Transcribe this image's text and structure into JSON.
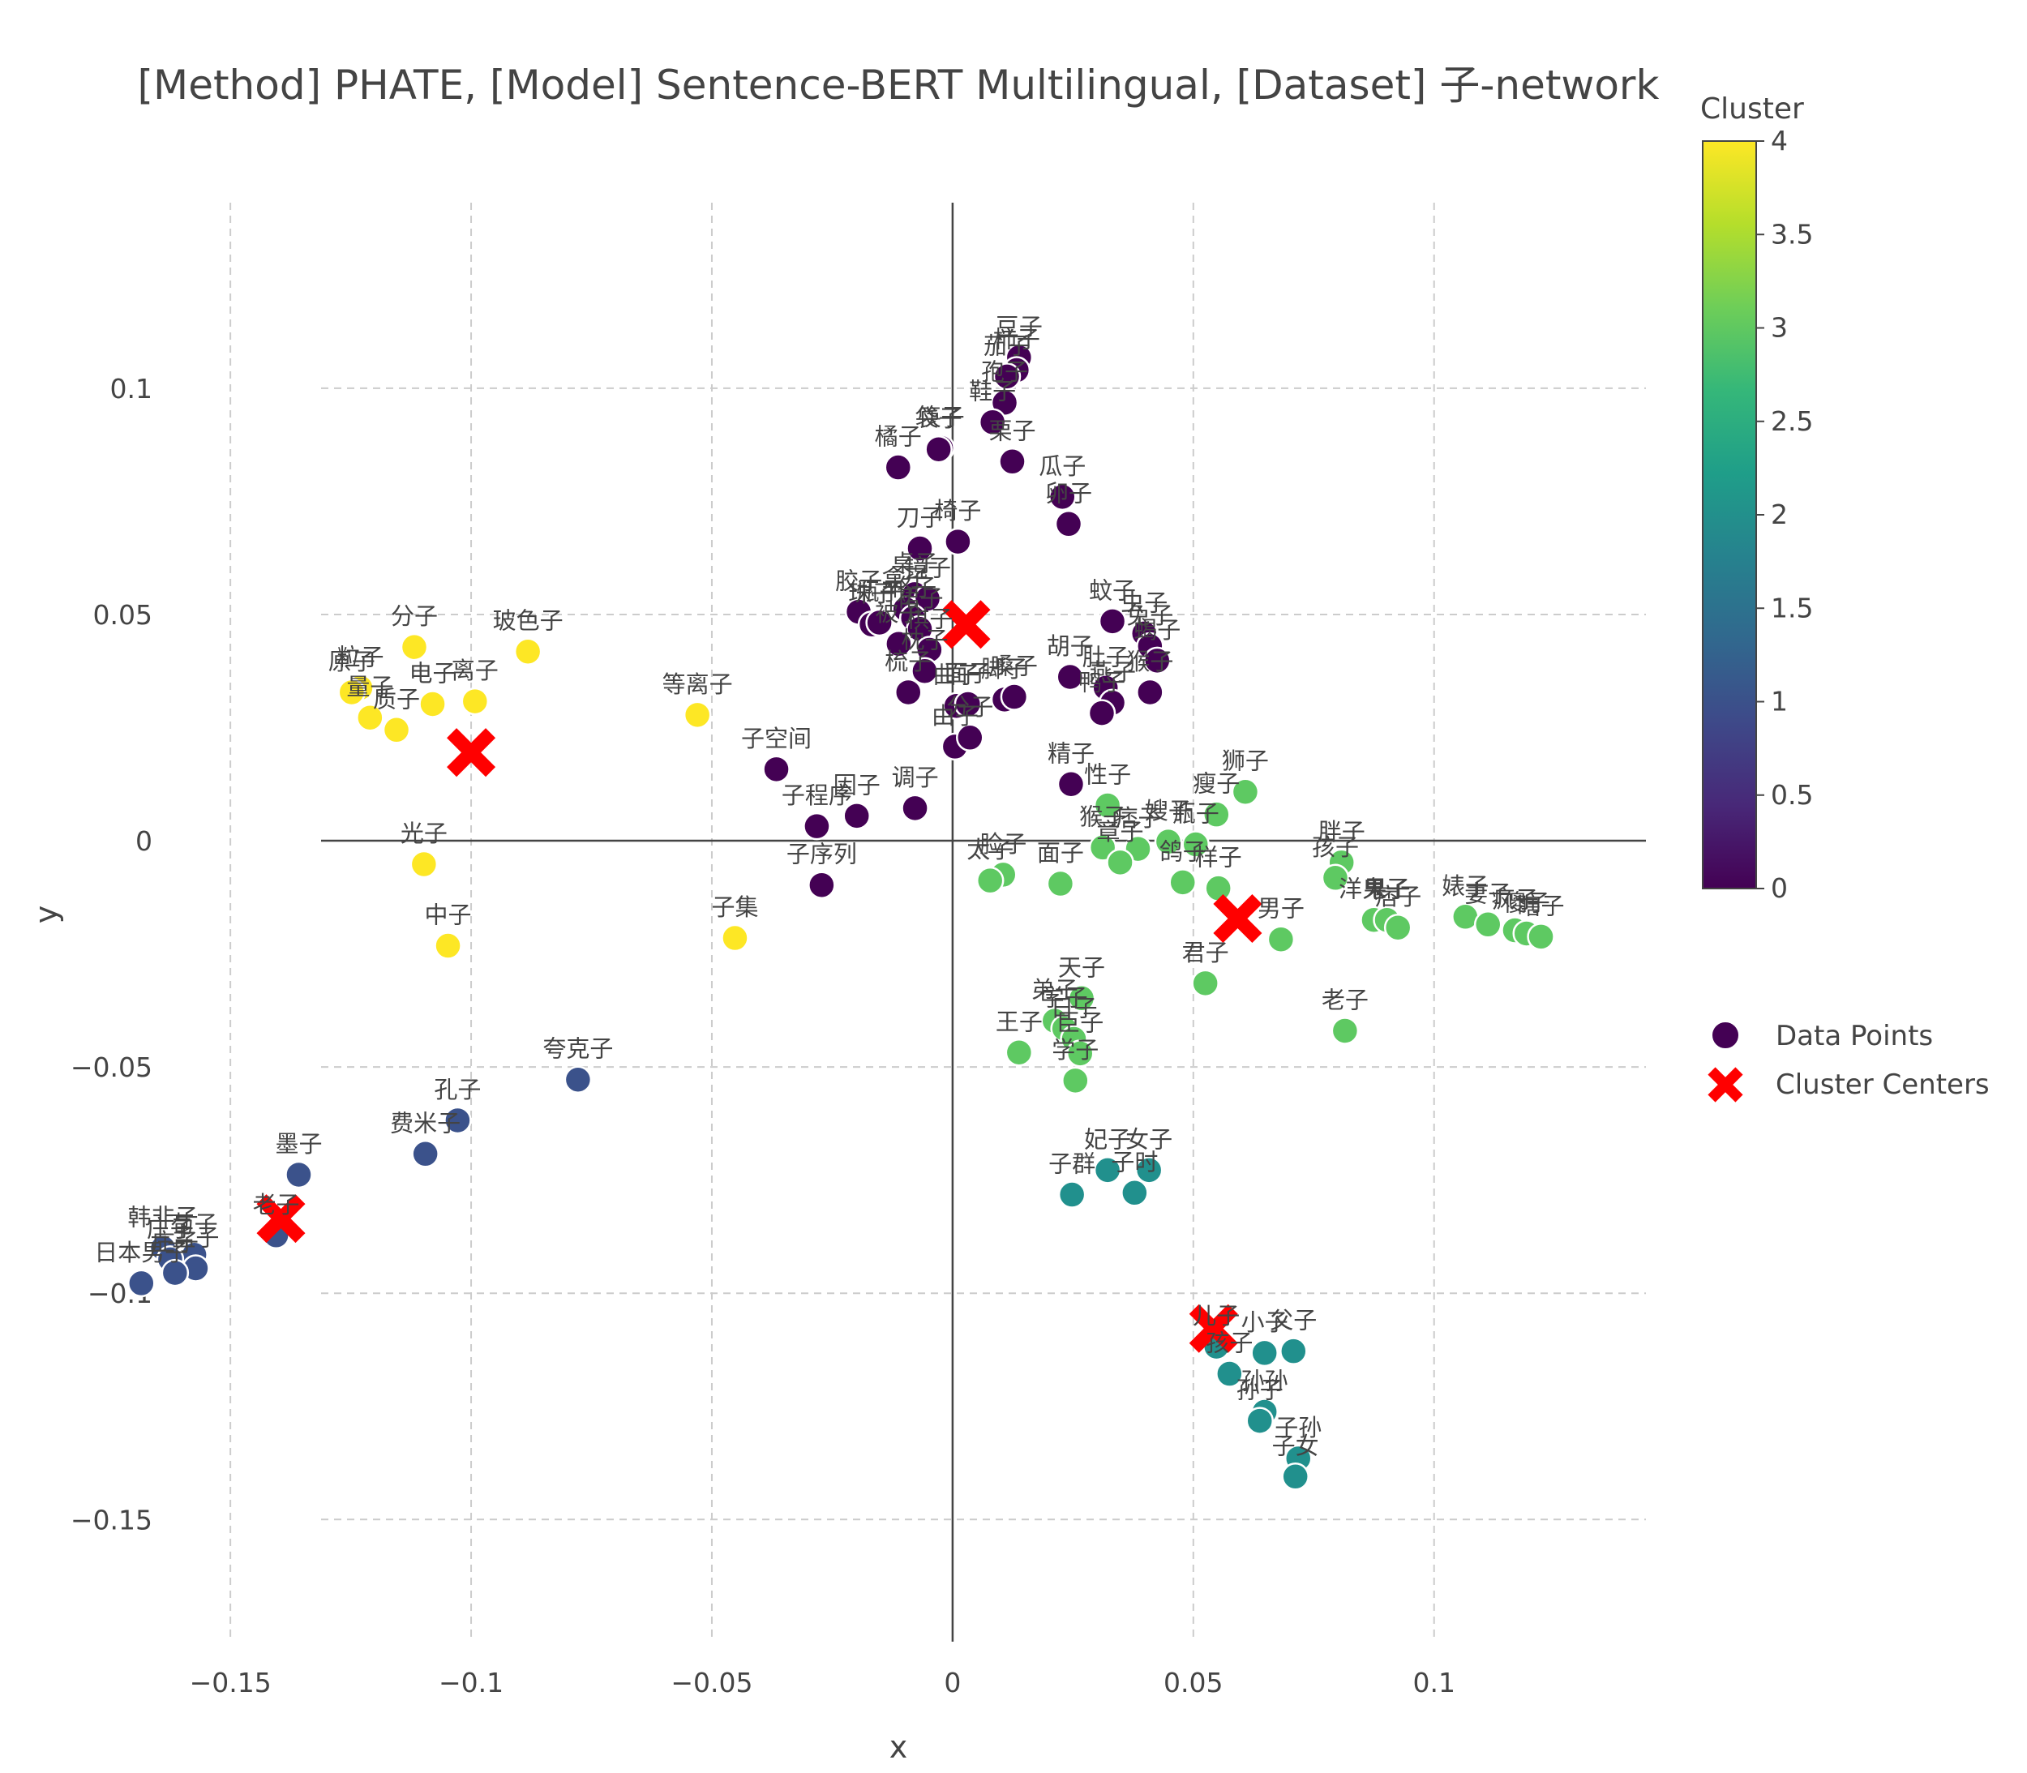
{
  "chart_data": {
    "type": "scatter",
    "title": "[Method] PHATE, [Model] Sentence-BERT Multilingual, [Dataset] 子-network",
    "xlabel": "x",
    "ylabel": "y",
    "xlim": [
      -0.18,
      0.144
    ],
    "ylim": [
      -0.177,
      0.141
    ],
    "xticks": [
      -0.15,
      -0.1,
      -0.05,
      0,
      0.05,
      0.1
    ],
    "xtick_labels": [
      "−0.15",
      "−0.1",
      "−0.05",
      "0",
      "0.05",
      "0.1"
    ],
    "yticks": [
      -0.15,
      -0.1,
      -0.05,
      0,
      0.05,
      0.1
    ],
    "ytick_labels": [
      "−0.15",
      "−0.1",
      "−0.05",
      "0",
      "0.05",
      "0.1"
    ],
    "grid": true,
    "colorbar": {
      "title": "Cluster",
      "range": [
        0,
        4
      ],
      "ticks": [
        0,
        0.5,
        1,
        1.5,
        2,
        2.5,
        3,
        3.5,
        4
      ],
      "tick_labels": [
        "0",
        "0.5",
        "1",
        "1.5",
        "2",
        "2.5",
        "3",
        "3.5",
        "4"
      ],
      "colormap": "viridis"
    },
    "legend": {
      "placement": "right",
      "entries": [
        {
          "name": "Data Points",
          "marker": "circle"
        },
        {
          "name": "Cluster Centers",
          "marker": "x"
        }
      ]
    },
    "cluster_colors": {
      "0": "#440154",
      "1": "#3b528b",
      "2": "#21908d",
      "3": "#5ec962",
      "4": "#fde725"
    },
    "center_color": "#ff0000",
    "points": [
      {
        "label": "豆子",
        "x": 0.0138,
        "y": 0.1068,
        "c": 0
      },
      {
        "label": "柿子",
        "x": 0.0133,
        "y": 0.104,
        "c": 0
      },
      {
        "label": "茄子",
        "x": 0.0113,
        "y": 0.1026,
        "c": 0
      },
      {
        "label": "孢子",
        "x": 0.0108,
        "y": 0.0968,
        "c": 0
      },
      {
        "label": "鞋子",
        "x": 0.0083,
        "y": 0.0925,
        "c": 0
      },
      {
        "label": "栗子",
        "x": 0.0124,
        "y": 0.0838,
        "c": 0
      },
      {
        "label": "筷子",
        "x": -0.0024,
        "y": 0.0868,
        "c": 0
      },
      {
        "label": "袋子",
        "x": -0.0029,
        "y": 0.0865,
        "c": 0
      },
      {
        "label": "橘子",
        "x": -0.0113,
        "y": 0.0825,
        "c": 0
      },
      {
        "label": "瓜子",
        "x": 0.0228,
        "y": 0.076,
        "c": 0
      },
      {
        "label": "卵子",
        "x": 0.0241,
        "y": 0.07,
        "c": 0
      },
      {
        "label": "刀子",
        "x": -0.0068,
        "y": 0.0646,
        "c": 0
      },
      {
        "label": "椅子",
        "x": 0.0011,
        "y": 0.0661,
        "c": 0
      },
      {
        "label": "胶子",
        "x": -0.0195,
        "y": 0.0506,
        "c": 0
      },
      {
        "label": "桌子",
        "x": -0.0079,
        "y": 0.0545,
        "c": 0
      },
      {
        "label": "镜子",
        "x": -0.0052,
        "y": 0.0535,
        "c": 0
      },
      {
        "label": "珠子",
        "x": -0.0168,
        "y": 0.0478,
        "c": 0
      },
      {
        "label": "瓶子",
        "x": -0.0152,
        "y": 0.0482,
        "c": 0
      },
      {
        "label": "盒子",
        "x": -0.0098,
        "y": 0.0512,
        "c": 0
      },
      {
        "label": "格子",
        "x": -0.0082,
        "y": 0.0492,
        "c": 0
      },
      {
        "label": "被子",
        "x": -0.0112,
        "y": 0.0435,
        "c": 0
      },
      {
        "label": "裙子",
        "x": -0.0068,
        "y": 0.0468,
        "c": 0
      },
      {
        "label": "棋子",
        "x": -0.0048,
        "y": 0.0422,
        "c": 0
      },
      {
        "label": "枕子",
        "x": -0.0058,
        "y": 0.0375,
        "c": 0
      },
      {
        "label": "梳子",
        "x": -0.0092,
        "y": 0.0328,
        "c": 0
      },
      {
        "label": "曲子",
        "x": 0.0008,
        "y": 0.0298,
        "c": 0
      },
      {
        "label": "面子",
        "x": 0.0032,
        "y": 0.0302,
        "c": 0
      },
      {
        "label": "脚子",
        "x": 0.0108,
        "y": 0.0312,
        "c": 0
      },
      {
        "label": "嗓子",
        "x": 0.0128,
        "y": 0.0318,
        "c": 0
      },
      {
        "label": "蚊子",
        "x": 0.0332,
        "y": 0.0485,
        "c": 0
      },
      {
        "label": "虫子",
        "x": 0.0398,
        "y": 0.0458,
        "c": 0
      },
      {
        "label": "兔子",
        "x": 0.041,
        "y": 0.043,
        "c": 0
      },
      {
        "label": "胡子",
        "x": 0.0244,
        "y": 0.0362,
        "c": 0
      },
      {
        "label": "肚子",
        "x": 0.0318,
        "y": 0.0338,
        "c": 0
      },
      {
        "label": "蝎子",
        "x": 0.0425,
        "y": 0.0398,
        "c": 0
      },
      {
        "label": "猴子",
        "x": 0.041,
        "y": 0.0328,
        "c": 0
      },
      {
        "label": "燕子",
        "x": 0.0332,
        "y": 0.0305,
        "c": 0
      },
      {
        "label": "鸭子",
        "x": 0.031,
        "y": 0.0282,
        "c": 0
      },
      {
        "label": "由子",
        "x": 0.0005,
        "y": 0.0208,
        "c": 0
      },
      {
        "label": "分子",
        "x": 0.0036,
        "y": 0.0228,
        "c": 0
      },
      {
        "label": "子空间",
        "x": -0.0366,
        "y": 0.0158,
        "c": 0
      },
      {
        "label": "精子",
        "x": 0.0246,
        "y": 0.0125,
        "c": 0
      },
      {
        "label": "调子",
        "x": -0.0078,
        "y": 0.0072,
        "c": 0
      },
      {
        "label": "因子",
        "x": -0.0199,
        "y": 0.0055,
        "c": 0
      },
      {
        "label": "子程序",
        "x": -0.0282,
        "y": 0.0032,
        "c": 0
      },
      {
        "label": "子序列",
        "x": -0.0272,
        "y": -0.0098,
        "c": 0
      },
      {
        "label": "分子",
        "x": -0.1118,
        "y": 0.0428,
        "c": 4
      },
      {
        "label": "玻色子",
        "x": -0.0882,
        "y": 0.0418,
        "c": 4
      },
      {
        "label": "粒子",
        "x": -0.123,
        "y": 0.0338,
        "c": 4
      },
      {
        "label": "原子",
        "x": -0.1248,
        "y": 0.0328,
        "c": 4
      },
      {
        "label": "电子",
        "x": -0.108,
        "y": 0.0302,
        "c": 4
      },
      {
        "label": "离子",
        "x": -0.0992,
        "y": 0.0308,
        "c": 4
      },
      {
        "label": "量子",
        "x": -0.121,
        "y": 0.0272,
        "c": 4
      },
      {
        "label": "质子",
        "x": -0.1155,
        "y": 0.0245,
        "c": 4
      },
      {
        "label": "等离子",
        "x": -0.053,
        "y": 0.0278,
        "c": 4
      },
      {
        "label": "光子",
        "x": -0.1098,
        "y": -0.0052,
        "c": 4
      },
      {
        "label": "中子",
        "x": -0.1048,
        "y": -0.0232,
        "c": 4
      },
      {
        "label": "子集",
        "x": -0.0452,
        "y": -0.0215,
        "c": 4
      },
      {
        "label": "夸克子",
        "x": -0.0778,
        "y": -0.0528,
        "c": 1
      },
      {
        "label": "孔子",
        "x": -0.1028,
        "y": -0.0618,
        "c": 1
      },
      {
        "label": "费米子",
        "x": -0.1095,
        "y": -0.0692,
        "c": 1
      },
      {
        "label": "墨子",
        "x": -0.1358,
        "y": -0.0738,
        "c": 1
      },
      {
        "label": "老子",
        "x": -0.1405,
        "y": -0.0872,
        "c": 1
      },
      {
        "label": "韩非子",
        "x": -0.164,
        "y": -0.09,
        "c": 1
      },
      {
        "label": "荀子",
        "x": -0.1575,
        "y": -0.0915,
        "c": 1
      },
      {
        "label": "庄子",
        "x": -0.1625,
        "y": -0.0925,
        "c": 1
      },
      {
        "label": "孟子",
        "x": -0.1572,
        "y": -0.0945,
        "c": 1
      },
      {
        "label": "庄子",
        "x": -0.1615,
        "y": -0.0955,
        "c": 1
      },
      {
        "label": "日本男子",
        "x": -0.1685,
        "y": -0.0978,
        "c": 1
      },
      {
        "label": "妃子",
        "x": 0.0322,
        "y": -0.0728,
        "c": 2
      },
      {
        "label": "女子",
        "x": 0.0408,
        "y": -0.0728,
        "c": 2
      },
      {
        "label": "子群",
        "x": 0.0248,
        "y": -0.0782,
        "c": 2
      },
      {
        "label": "子时",
        "x": 0.0378,
        "y": -0.0778,
        "c": 2
      },
      {
        "label": "儿子",
        "x": 0.0548,
        "y": -0.1118,
        "c": 2
      },
      {
        "label": "小子",
        "x": 0.0648,
        "y": -0.1132,
        "c": 2
      },
      {
        "label": "父子",
        "x": 0.0708,
        "y": -0.1128,
        "c": 2
      },
      {
        "label": "孩子",
        "x": 0.0575,
        "y": -0.1178,
        "c": 2
      },
      {
        "label": "孙孙",
        "x": 0.0648,
        "y": -0.1262,
        "c": 2
      },
      {
        "label": "孙子",
        "x": 0.0638,
        "y": -0.1282,
        "c": 2
      },
      {
        "label": "子孙",
        "x": 0.0718,
        "y": -0.1365,
        "c": 2
      },
      {
        "label": "子女",
        "x": 0.0712,
        "y": -0.1405,
        "c": 2
      },
      {
        "label": "狮子",
        "x": 0.0608,
        "y": 0.0108,
        "c": 3
      },
      {
        "label": "瘦子",
        "x": 0.0548,
        "y": 0.0058,
        "c": 3
      },
      {
        "label": "性子",
        "x": 0.0322,
        "y": 0.0078,
        "c": 3
      },
      {
        "label": "嫂子",
        "x": 0.0448,
        "y": -0.0002,
        "c": 3
      },
      {
        "label": "瓶子",
        "x": 0.0505,
        "y": -0.0008,
        "c": 3
      },
      {
        "label": "猴子",
        "x": 0.0312,
        "y": -0.0015,
        "c": 3
      },
      {
        "label": "痞子",
        "x": 0.0385,
        "y": -0.0018,
        "c": 3
      },
      {
        "label": "章子",
        "x": 0.0348,
        "y": -0.0048,
        "c": 3
      },
      {
        "label": "鸽子",
        "x": 0.0478,
        "y": -0.0092,
        "c": 3
      },
      {
        "label": "样子",
        "x": 0.0552,
        "y": -0.0105,
        "c": 3
      },
      {
        "label": "胖子",
        "x": 0.0808,
        "y": -0.0048,
        "c": 3
      },
      {
        "label": "孩子",
        "x": 0.0795,
        "y": -0.0082,
        "c": 3
      },
      {
        "label": "脸子",
        "x": 0.0105,
        "y": -0.0075,
        "c": 3
      },
      {
        "label": "太子",
        "x": 0.0078,
        "y": -0.0088,
        "c": 3
      },
      {
        "label": "面子",
        "x": 0.0224,
        "y": -0.0095,
        "c": 3
      },
      {
        "label": "男子",
        "x": 0.0682,
        "y": -0.0218,
        "c": 3
      },
      {
        "label": "君子",
        "x": 0.0525,
        "y": -0.0315,
        "c": 3
      },
      {
        "label": "洋鬼子",
        "x": 0.0875,
        "y": -0.0175,
        "c": 3
      },
      {
        "label": "果子",
        "x": 0.0902,
        "y": -0.0175,
        "c": 3
      },
      {
        "label": "痞子",
        "x": 0.0925,
        "y": -0.0192,
        "c": 3
      },
      {
        "label": "婊子",
        "x": 0.1065,
        "y": -0.0168,
        "c": 3
      },
      {
        "label": "妻子",
        "x": 0.1112,
        "y": -0.0185,
        "c": 3
      },
      {
        "label": "疯子",
        "x": 0.1168,
        "y": -0.0198,
        "c": 3
      },
      {
        "label": "傻子",
        "x": 0.1192,
        "y": -0.0205,
        "c": 3
      },
      {
        "label": "瞎子",
        "x": 0.1222,
        "y": -0.0212,
        "c": 3
      },
      {
        "label": "天子",
        "x": 0.0268,
        "y": -0.0348,
        "c": 3
      },
      {
        "label": "弟子",
        "x": 0.0212,
        "y": -0.0398,
        "c": 3
      },
      {
        "label": "学子",
        "x": 0.0232,
        "y": -0.0415,
        "c": 3
      },
      {
        "label": "日子",
        "x": 0.0252,
        "y": -0.0438,
        "c": 3
      },
      {
        "label": "王子",
        "x": 0.0138,
        "y": -0.0468,
        "c": 3
      },
      {
        "label": "臣子",
        "x": 0.0265,
        "y": -0.047,
        "c": 3
      },
      {
        "label": "学子",
        "x": 0.0255,
        "y": -0.053,
        "c": 3
      },
      {
        "label": "老子",
        "x": 0.0815,
        "y": -0.042,
        "c": 3
      }
    ],
    "centers": [
      {
        "x": 0.0028,
        "y": 0.0478
      },
      {
        "x": -0.1,
        "y": 0.0195
      },
      {
        "x": -0.1395,
        "y": -0.0835
      },
      {
        "x": 0.0592,
        "y": -0.0172
      },
      {
        "x": 0.0542,
        "y": -0.1078
      }
    ]
  }
}
